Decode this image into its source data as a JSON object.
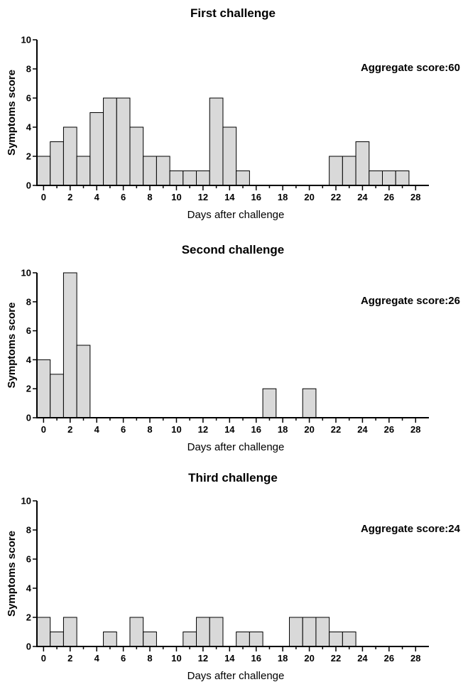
{
  "chart_data": [
    {
      "type": "bar",
      "title": "First challenge",
      "annotation": "Aggregate score:60",
      "xlabel": "Days after challenge",
      "ylabel": "Symptoms score",
      "ylim": [
        0,
        10
      ],
      "yticks": [
        "0",
        "2",
        "4",
        "6",
        "8",
        "10"
      ],
      "xlim": [
        -0.5,
        29
      ],
      "xticks": [
        "0",
        "2",
        "4",
        "6",
        "8",
        "10",
        "12",
        "14",
        "16",
        "18",
        "20",
        "22",
        "24",
        "26",
        "28"
      ],
      "x": [
        0,
        1,
        2,
        3,
        4,
        5,
        6,
        7,
        8,
        9,
        10,
        11,
        12,
        13,
        14,
        15,
        22,
        23,
        24,
        25,
        26,
        27
      ],
      "values": [
        2,
        3,
        4,
        2,
        5,
        6,
        6,
        4,
        2,
        2,
        1,
        1,
        1,
        6,
        4,
        1,
        2,
        2,
        3,
        1,
        1,
        1
      ]
    },
    {
      "type": "bar",
      "title": "Second challenge",
      "annotation": "Aggregate score:26",
      "xlabel": "Days after challenge",
      "ylabel": "Symptoms score",
      "ylim": [
        0,
        10
      ],
      "yticks": [
        "0",
        "2",
        "4",
        "6",
        "8",
        "10"
      ],
      "xlim": [
        -0.5,
        29
      ],
      "xticks": [
        "0",
        "2",
        "4",
        "6",
        "8",
        "10",
        "12",
        "14",
        "16",
        "18",
        "20",
        "22",
        "24",
        "26",
        "28"
      ],
      "x": [
        0,
        1,
        2,
        3,
        17,
        20
      ],
      "values": [
        4,
        3,
        10,
        5,
        2,
        2
      ]
    },
    {
      "type": "bar",
      "title": "Third challenge",
      "annotation": "Aggregate score:24",
      "xlabel": "Days after challenge",
      "ylabel": "Symptoms score",
      "ylim": [
        0,
        10
      ],
      "yticks": [
        "0",
        "2",
        "4",
        "6",
        "8",
        "10"
      ],
      "xlim": [
        -0.5,
        29
      ],
      "xticks": [
        "0",
        "2",
        "4",
        "6",
        "8",
        "10",
        "12",
        "14",
        "16",
        "18",
        "20",
        "22",
        "24",
        "26",
        "28"
      ],
      "x": [
        0,
        1,
        2,
        5,
        7,
        8,
        11,
        12,
        13,
        15,
        16,
        19,
        20,
        21,
        22,
        23
      ],
      "values": [
        2,
        1,
        2,
        1,
        2,
        1,
        1,
        2,
        2,
        1,
        1,
        2,
        2,
        2,
        1,
        1
      ]
    }
  ]
}
